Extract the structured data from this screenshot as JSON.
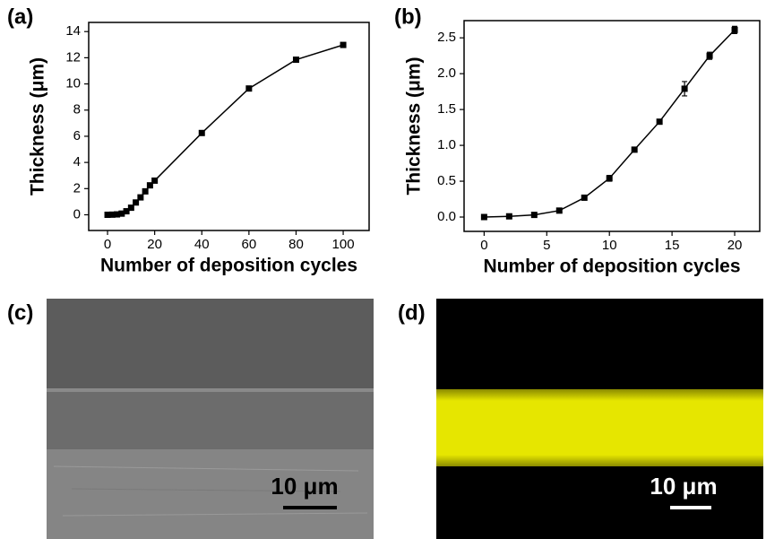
{
  "chart_data": [
    {
      "type": "line",
      "panel_label": "(a)",
      "x_label": "Number of deposition cycles",
      "y_label": "Thickness (μm)",
      "x": [
        0,
        2,
        4,
        6,
        8,
        10,
        12,
        14,
        16,
        18,
        20,
        40,
        60,
        80,
        100
      ],
      "values": [
        0,
        0.01,
        0.03,
        0.09,
        0.27,
        0.54,
        0.94,
        1.33,
        1.79,
        2.25,
        2.61,
        6.25,
        9.65,
        11.85,
        12.98
      ],
      "color": "#000000",
      "xlim": [
        -8,
        111
      ],
      "ylim": [
        -1.2,
        14.7
      ],
      "xticks": [
        0,
        20,
        40,
        60,
        80,
        100
      ],
      "yticks": [
        0,
        2,
        4,
        6,
        8,
        10,
        12,
        14
      ]
    },
    {
      "type": "line",
      "panel_label": "(b)",
      "x_label": "Number of deposition cycles",
      "y_label": "Thickness (μm)",
      "x": [
        0,
        2,
        4,
        6,
        8,
        10,
        12,
        14,
        16,
        18,
        20
      ],
      "values": [
        0,
        0.01,
        0.03,
        0.09,
        0.27,
        0.54,
        0.94,
        1.33,
        1.79,
        2.25,
        2.61
      ],
      "errors": [
        0.01,
        0.01,
        0.01,
        0.02,
        0.02,
        0.04,
        0.03,
        0.02,
        0.1,
        0.05,
        0.05
      ],
      "color": "#000000",
      "xlim": [
        -1.6,
        22
      ],
      "ylim": [
        -0.2,
        2.74
      ],
      "xticks": [
        0,
        5,
        10,
        15,
        20
      ],
      "yticks": [
        {
          "value": 0,
          "label": "0.0"
        },
        0.5,
        {
          "value": 1,
          "label": "1.0"
        },
        1.5,
        {
          "value": 2,
          "label": "2.0"
        },
        2.5
      ]
    }
  ],
  "images": [
    {
      "panel_label": "(c)",
      "scale_bar": "10 μm"
    },
    {
      "panel_label": "(d)",
      "scale_bar": "10 μm"
    }
  ]
}
